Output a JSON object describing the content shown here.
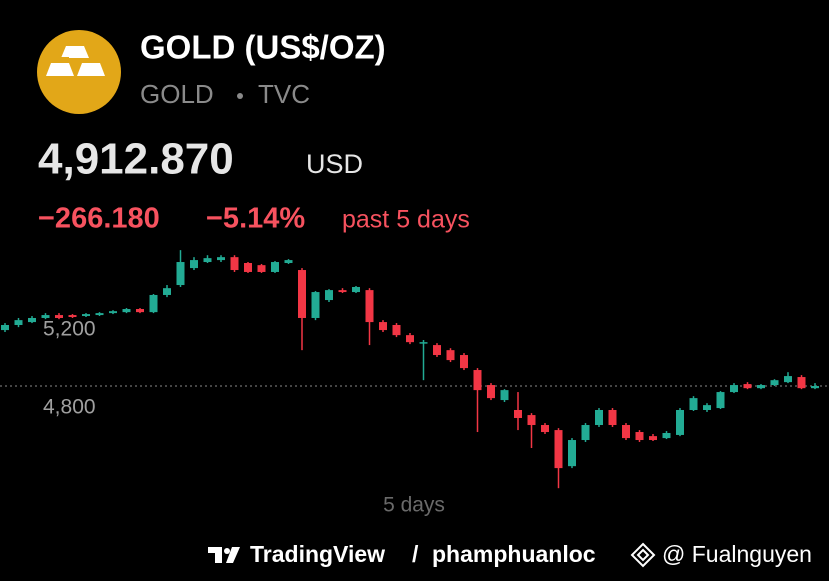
{
  "header": {
    "title": "GOLD (US$/OZ)",
    "symbol": "GOLD",
    "exchange": "TVC",
    "price": "4,912.870",
    "currency": "USD",
    "change": "−266.180",
    "change_percent": "−5.14%",
    "period": "past 5 days"
  },
  "chart_data": {
    "type": "candlestick",
    "categories": [
      null,
      null,
      null,
      null,
      null,
      null,
      null,
      null,
      null,
      null,
      null,
      null,
      null,
      null,
      null,
      null,
      null,
      null,
      null,
      null,
      null,
      null,
      null,
      null,
      null,
      null,
      null,
      null,
      null,
      null,
      null,
      null,
      null,
      null,
      null,
      null,
      null,
      null,
      null,
      null,
      null,
      null,
      null,
      null,
      null,
      null,
      null,
      null,
      null,
      null,
      null,
      null,
      null,
      null,
      null,
      null,
      null,
      null,
      null,
      null,
      null
    ],
    "open": [
      5200,
      5226,
      5241,
      5262,
      5277,
      5277,
      5272,
      5277,
      5287,
      5292,
      5308,
      5292,
      5380,
      5431,
      5518,
      5549,
      5559,
      5574,
      5544,
      5533,
      5498,
      5544,
      5508,
      5262,
      5354,
      5405,
      5395,
      5405,
      5241,
      5226,
      5174,
      5133,
      5123,
      5097,
      5072,
      4995,
      4918,
      4841,
      4790,
      4764,
      4713,
      4687,
      4502,
      4636,
      4713,
      4790,
      4713,
      4677,
      4656,
      4646,
      4662,
      4790,
      4790,
      4800,
      4882,
      4923,
      4902,
      4918,
      4933,
      4959,
      4902
    ],
    "high": [
      5236,
      5262,
      5272,
      5287,
      5287,
      5282,
      5287,
      5292,
      5302,
      5313,
      5313,
      5385,
      5431,
      5610,
      5574,
      5584,
      5584,
      5584,
      5549,
      5539,
      5554,
      5564,
      5518,
      5400,
      5410,
      5415,
      5426,
      5415,
      5251,
      5236,
      5185,
      5149,
      5133,
      5107,
      5082,
      5005,
      4928,
      4897,
      4882,
      4774,
      4723,
      4697,
      4646,
      4723,
      4800,
      4800,
      4723,
      4687,
      4667,
      4682,
      4800,
      4861,
      4825,
      4887,
      4928,
      4933,
      4923,
      4948,
      4984,
      4969,
      4928
    ],
    "low": [
      5190,
      5215,
      5236,
      5256,
      5256,
      5262,
      5267,
      5272,
      5282,
      5287,
      5287,
      5287,
      5369,
      5421,
      5508,
      5544,
      5549,
      5498,
      5493,
      5493,
      5493,
      5539,
      5097,
      5251,
      5344,
      5390,
      5390,
      5123,
      5190,
      5164,
      5128,
      4943,
      5062,
      5036,
      4995,
      4677,
      4841,
      4831,
      4687,
      4595,
      4667,
      4389,
      4492,
      4626,
      4703,
      4703,
      4636,
      4626,
      4631,
      4641,
      4656,
      4785,
      4780,
      4795,
      4877,
      4897,
      4897,
      4913,
      4928,
      4897,
      4897
    ],
    "close": [
      5226,
      5251,
      5262,
      5277,
      5262,
      5267,
      5282,
      5287,
      5297,
      5308,
      5292,
      5380,
      5415,
      5549,
      5559,
      5569,
      5574,
      5508,
      5498,
      5498,
      5549,
      5559,
      5262,
      5395,
      5405,
      5395,
      5421,
      5241,
      5200,
      5174,
      5138,
      5138,
      5072,
      5046,
      5005,
      4892,
      4851,
      4892,
      4749,
      4713,
      4677,
      4492,
      4636,
      4713,
      4790,
      4713,
      4646,
      4636,
      4636,
      4672,
      4790,
      4851,
      4815,
      4882,
      4918,
      4902,
      4918,
      4943,
      4964,
      4902,
      4913
    ],
    "up_color": "#22ab94",
    "down_color": "#f23645",
    "last_price": 4912.87,
    "ylim": [
      4354,
      5662
    ],
    "yticks": [
      {
        "value": 5200,
        "label": "5,200"
      },
      {
        "value": 4800,
        "label": "4,800"
      }
    ],
    "x_label": "5 days"
  },
  "footer": {
    "brand": "TradingView",
    "separator": "/",
    "author": "phamphuanloc",
    "credit": "@ Fualnguyen"
  }
}
